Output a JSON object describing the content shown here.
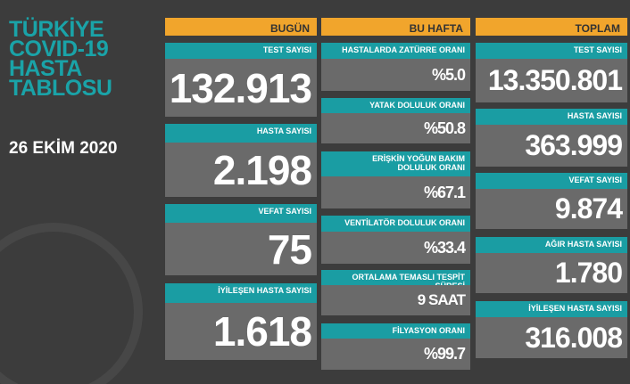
{
  "header": {
    "title_lines": [
      "TÜRKİYE",
      "COVID-19",
      "HASTA",
      "TABLOSU"
    ],
    "date": "26 EKİM 2020"
  },
  "columns": [
    {
      "header": "BUGÜN",
      "items": [
        {
          "label": "TEST SAYISI",
          "value": "132.913"
        },
        {
          "label": "HASTA SAYISI",
          "value": "2.198"
        },
        {
          "label": "VEFAT SAYISI",
          "value": "75"
        },
        {
          "label": "İYİLEŞEN HASTA SAYISI",
          "value": "1.618"
        }
      ]
    },
    {
      "header": "BU HAFTA",
      "items": [
        {
          "label": "HASTALARDA ZATÜRRE ORANI",
          "value": "%5.0"
        },
        {
          "label": "YATAK DOLULUK ORANI",
          "value": "%50.8"
        },
        {
          "label": "ERİŞKİN YOĞUN BAKIM DOLULUK ORANI",
          "value": "%67.1"
        },
        {
          "label": "VENTİLATÖR DOLULUK ORANI",
          "value": "%33.4"
        },
        {
          "label": "ORTALAMA TEMASLI TESPİT SÜRESİ",
          "value": "9 SAAT"
        },
        {
          "label": "FİLYASYON ORANI",
          "value": "%99.7"
        }
      ]
    },
    {
      "header": "TOPLAM",
      "items": [
        {
          "label": "TEST SAYISI",
          "value": "13.350.801"
        },
        {
          "label": "HASTA SAYISI",
          "value": "363.999"
        },
        {
          "label": "VEFAT SAYISI",
          "value": "9.874"
        },
        {
          "label": "AĞIR HASTA SAYISI",
          "value": "1.780"
        },
        {
          "label": "İYİLEŞEN HASTA SAYISI",
          "value": "316.008"
        }
      ]
    }
  ]
}
